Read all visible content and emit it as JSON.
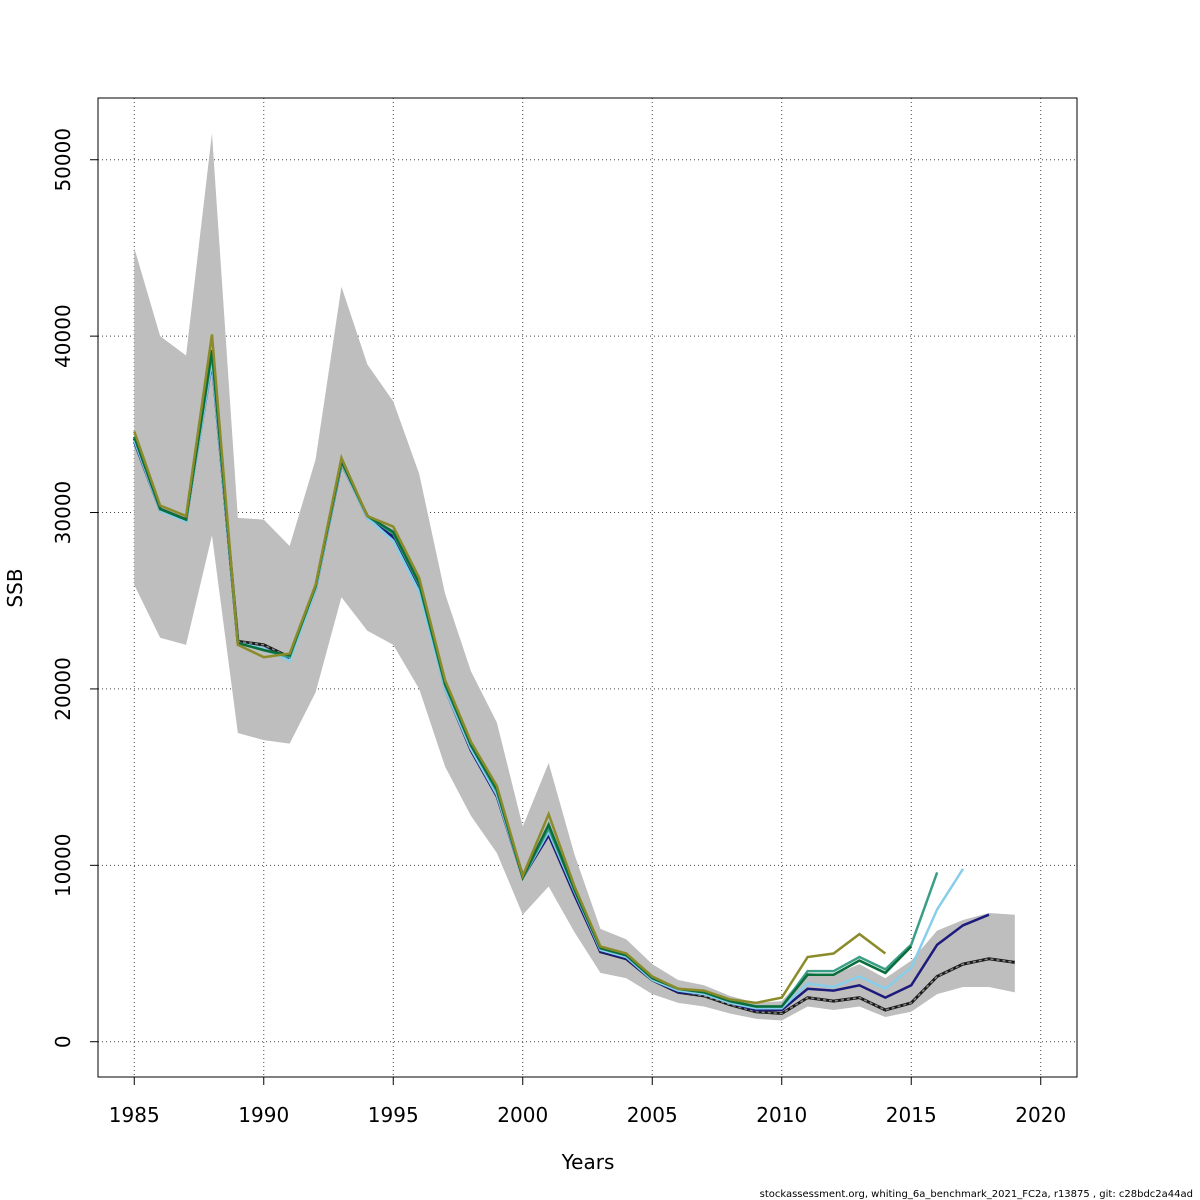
{
  "chart_data": {
    "type": "line",
    "title": "",
    "xlabel": "Years",
    "ylabel": "SSB",
    "xlim": [
      1983.6,
      2021.4
    ],
    "ylim": [
      -2000,
      53500
    ],
    "xticks": [
      1985,
      1990,
      1995,
      2000,
      2005,
      2010,
      2015,
      2020
    ],
    "yticks": [
      0,
      10000,
      20000,
      30000,
      40000,
      50000
    ],
    "grid": true,
    "legend": "none",
    "confidence_band": {
      "x": [
        1985,
        1986,
        1987,
        1988,
        1989,
        1990,
        1991,
        1992,
        1993,
        1994,
        1995,
        1996,
        1997,
        1998,
        1999,
        2000,
        2001,
        2002,
        2003,
        2004,
        2005,
        2006,
        2007,
        2008,
        2009,
        2010,
        2011,
        2012,
        2013,
        2014,
        2015,
        2016,
        2017,
        2018,
        2019
      ],
      "upper": [
        45000,
        40000,
        38900,
        51500,
        29700,
        29600,
        28100,
        33000,
        42800,
        38400,
        36300,
        32200,
        25400,
        21000,
        18100,
        12200,
        15800,
        10600,
        6400,
        5800,
        4400,
        3500,
        3200,
        2600,
        2200,
        2300,
        3900,
        3800,
        4400,
        3600,
        4600,
        6300,
        6900,
        7300,
        7200
      ],
      "lower": [
        25900,
        22900,
        22500,
        28700,
        17500,
        17100,
        16900,
        19800,
        25200,
        23300,
        22500,
        20000,
        15600,
        12800,
        10700,
        7200,
        8800,
        6200,
        3900,
        3600,
        2700,
        2200,
        2000,
        1600,
        1300,
        1200,
        2000,
        1800,
        2000,
        1400,
        1700,
        2700,
        3100,
        3100,
        2800
      ]
    },
    "series": [
      {
        "color": "#1a1a1a",
        "dashed": true,
        "x": [
          1985,
          1986,
          1987,
          1988,
          1989,
          1990,
          1991,
          1992,
          1993,
          1994,
          1995,
          1996,
          1997,
          1998,
          1999,
          2000,
          2001,
          2002,
          2003,
          2004,
          2005,
          2006,
          2007,
          2008,
          2009,
          2010,
          2011,
          2012,
          2013,
          2014,
          2015,
          2016,
          2017,
          2018,
          2019
        ],
        "values": [
          34200,
          30200,
          29600,
          38800,
          22700,
          22500,
          21800,
          25700,
          32800,
          29800,
          28700,
          25800,
          20200,
          16700,
          14100,
          9400,
          11800,
          8500,
          5100,
          4700,
          3500,
          2800,
          2600,
          2100,
          1700,
          1600,
          2500,
          2300,
          2500,
          1800,
          2200,
          3700,
          4400,
          4700,
          4500
        ]
      },
      {
        "color": "#1c1a7a",
        "dashed": false,
        "x": [
          1985,
          1986,
          1987,
          1988,
          1989,
          1990,
          1991,
          1992,
          1993,
          1994,
          1995,
          1996,
          1997,
          1998,
          1999,
          2000,
          2001,
          2002,
          2003,
          2004,
          2005,
          2006,
          2007,
          2008,
          2009,
          2010,
          2011,
          2012,
          2013,
          2014,
          2015,
          2016,
          2017,
          2018
        ],
        "values": [
          34000,
          30100,
          29600,
          38500,
          22600,
          22300,
          21700,
          25600,
          32800,
          29700,
          28600,
          25700,
          20000,
          16500,
          13900,
          9300,
          11700,
          8300,
          5100,
          4700,
          3500,
          2800,
          2700,
          2200,
          1800,
          1800,
          3000,
          2900,
          3200,
          2500,
          3200,
          5500,
          6600,
          7200
        ]
      },
      {
        "color": "#87ceeb",
        "dashed": false,
        "x": [
          1985,
          1986,
          1987,
          1988,
          1989,
          1990,
          1991,
          1992,
          1993,
          1994,
          1995,
          1996,
          1997,
          1998,
          1999,
          2000,
          2001,
          2002,
          2003,
          2004,
          2005,
          2006,
          2007,
          2008,
          2009,
          2010,
          2011,
          2012,
          2013,
          2014,
          2015,
          2016,
          2017
        ],
        "values": [
          34100,
          30100,
          29500,
          38600,
          22600,
          22300,
          21600,
          25600,
          32800,
          29700,
          28400,
          25500,
          20000,
          16600,
          14000,
          9300,
          11900,
          8500,
          5200,
          4800,
          3500,
          2900,
          2700,
          2200,
          1900,
          1900,
          3300,
          3100,
          3700,
          3000,
          4200,
          7500,
          9800
        ]
      },
      {
        "color": "#3a9e86",
        "dashed": false,
        "x": [
          1985,
          1986,
          1987,
          1988,
          1989,
          1990,
          1991,
          1992,
          1993,
          1994,
          1995,
          1996,
          1997,
          1998,
          1999,
          2000,
          2001,
          2002,
          2003,
          2004,
          2005,
          2006,
          2007,
          2008,
          2009,
          2010,
          2011,
          2012,
          2013,
          2014,
          2015,
          2016
        ],
        "values": [
          34300,
          30200,
          29600,
          39000,
          22600,
          22200,
          21800,
          25800,
          32900,
          29800,
          28800,
          25900,
          20200,
          16800,
          14200,
          9300,
          12100,
          8600,
          5300,
          4900,
          3600,
          3000,
          2800,
          2300,
          2000,
          2000,
          4000,
          4000,
          4800,
          4100,
          5500,
          9600
        ]
      },
      {
        "color": "#0a6e3c",
        "dashed": false,
        "x": [
          1985,
          1986,
          1987,
          1988,
          1989,
          1990,
          1991,
          1992,
          1993,
          1994,
          1995,
          1996,
          1997,
          1998,
          1999,
          2000,
          2001,
          2002,
          2003,
          2004,
          2005,
          2006,
          2007,
          2008,
          2009,
          2010,
          2011,
          2012,
          2013,
          2014,
          2015
        ],
        "values": [
          34300,
          30200,
          29600,
          39200,
          22600,
          22200,
          21900,
          25800,
          32900,
          29800,
          28900,
          26000,
          20300,
          16800,
          14300,
          9300,
          12300,
          8600,
          5300,
          4900,
          3600,
          3000,
          2800,
          2300,
          2000,
          2000,
          3800,
          3800,
          4600,
          3900,
          5400
        ]
      },
      {
        "color": "#8b8b2a",
        "dashed": false,
        "x": [
          1985,
          1986,
          1987,
          1988,
          1989,
          1990,
          1991,
          1992,
          1993,
          1994,
          1995,
          1996,
          1997,
          1998,
          1999,
          2000,
          2001,
          2002,
          2003,
          2004,
          2005,
          2006,
          2007,
          2008,
          2009,
          2010,
          2011,
          2012,
          2013,
          2014
        ],
        "values": [
          34600,
          30400,
          29800,
          40100,
          22500,
          21800,
          22000,
          25900,
          33100,
          29800,
          29200,
          26300,
          20500,
          17000,
          14500,
          9400,
          12900,
          8800,
          5400,
          5000,
          3700,
          3000,
          2900,
          2400,
          2200,
          2500,
          4800,
          5000,
          6100,
          5000
        ]
      }
    ]
  },
  "footer": "stockassessment.org, whiting_6a_benchmark_2021_FC2a, r13875 , git: c28bdc2a44ad"
}
